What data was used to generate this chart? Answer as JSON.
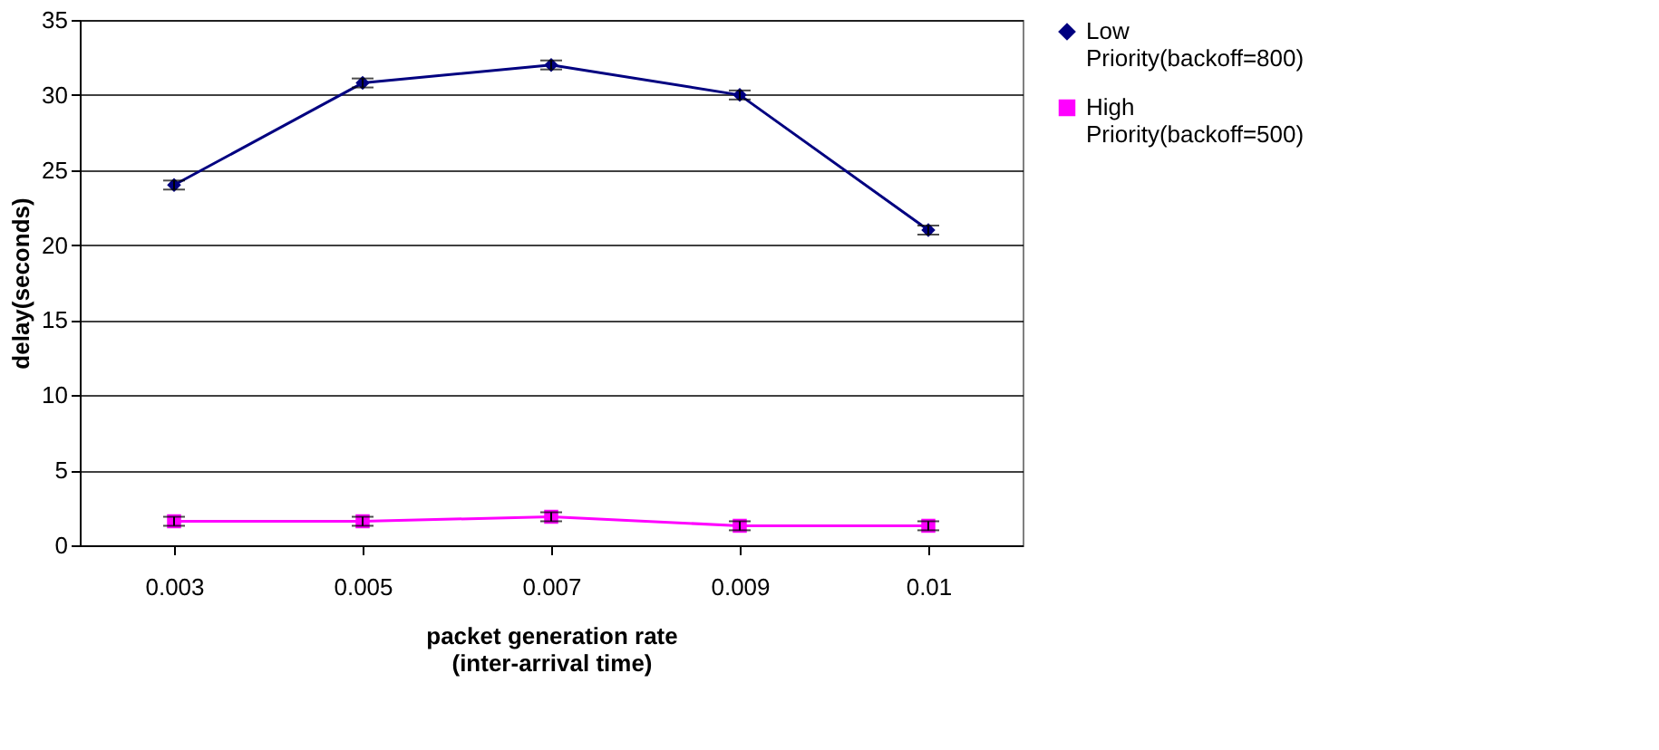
{
  "chart_data": {
    "type": "line",
    "xlabel": "packet generation rate\n(inter-arrival time)",
    "ylabel": "delay(seconds)",
    "categories": [
      "0.003",
      "0.005",
      "0.007",
      "0.009",
      "0.01"
    ],
    "series": [
      {
        "name": "Low Priority(backoff=800)",
        "color": "#000080",
        "marker": "diamond",
        "values": [
          24,
          30.8,
          32,
          30,
          21
        ],
        "errors": [
          0.3,
          0.3,
          0.3,
          0.3,
          0.3
        ]
      },
      {
        "name": "High Priority(backoff=500)",
        "color": "#ff00ff",
        "marker": "square",
        "values": [
          1.6,
          1.6,
          1.9,
          1.3,
          1.3
        ],
        "errors": [
          0.3,
          0.3,
          0.3,
          0.3,
          0.3
        ]
      }
    ],
    "ylim": [
      0,
      35
    ],
    "yticks": [
      0,
      5,
      10,
      15,
      20,
      25,
      30,
      35
    ],
    "grid": "y",
    "legend": "right",
    "line_style": "solid"
  }
}
